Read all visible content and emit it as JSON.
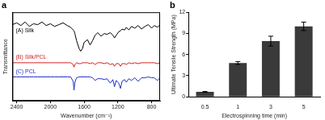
{
  "chart_data": [
    {
      "type": "line",
      "title": "a",
      "x_label": "Wavenumber (cm⁻¹)",
      "y_label": "Transmittance",
      "x": [
        2450,
        2400,
        2350,
        2300,
        2250,
        2200,
        2150,
        2100,
        2050,
        2000,
        1950,
        1900,
        1850,
        1800,
        1760,
        1730,
        1720,
        1710,
        1690,
        1660,
        1640,
        1620,
        1600,
        1560,
        1530,
        1500,
        1470,
        1440,
        1400,
        1360,
        1330,
        1290,
        1260,
        1240,
        1220,
        1190,
        1170,
        1150,
        1120,
        1100,
        1070,
        1040,
        1000,
        960,
        920,
        880,
        840,
        800,
        770,
        730,
        700
      ],
      "series": [
        {
          "name": "(A) Silk",
          "color": "#000000",
          "values": [
            8.6,
            8.8,
            8.5,
            8.9,
            8.4,
            8.7,
            8.6,
            8.9,
            8.5,
            8.7,
            8.4,
            8.6,
            8.8,
            8.5,
            8.3,
            8.0,
            7.9,
            7.6,
            6.8,
            5.9,
            5.6,
            5.9,
            6.6,
            6.9,
            6.3,
            6.8,
            7.4,
            7.7,
            7.3,
            7.6,
            7.5,
            7.7,
            7.4,
            7.1,
            7.4,
            7.8,
            7.9,
            8.1,
            8.0,
            8.3,
            8.0,
            8.4,
            8.2,
            8.5,
            8.1,
            8.4,
            8.6,
            8.2,
            8.5,
            8.3,
            8.6
          ]
        },
        {
          "name": "(B) Silk/PCL",
          "color": "#d42020",
          "values": [
            4.3,
            4.3,
            4.3,
            4.3,
            4.3,
            4.3,
            4.3,
            4.3,
            4.3,
            4.3,
            4.3,
            4.3,
            4.3,
            4.3,
            4.3,
            4.1,
            3.8,
            4.1,
            4.3,
            4.2,
            4.2,
            4.3,
            4.3,
            4.3,
            4.2,
            4.3,
            4.1,
            4.3,
            4.3,
            4.2,
            4.3,
            4.1,
            4.2,
            3.9,
            4.2,
            4.2,
            3.9,
            4.2,
            4.2,
            4.1,
            4.3,
            4.2,
            4.3,
            4.2,
            4.3,
            4.3,
            4.3,
            4.3,
            4.3,
            4.2,
            4.3
          ]
        },
        {
          "name": "(C) PCL",
          "color": "#2030c8",
          "values": [
            2.7,
            2.7,
            2.7,
            2.7,
            2.7,
            2.7,
            2.7,
            2.7,
            2.7,
            2.7,
            2.7,
            2.7,
            2.7,
            2.7,
            2.7,
            2.2,
            1.2,
            2.1,
            2.6,
            2.7,
            2.7,
            2.7,
            2.7,
            2.7,
            2.7,
            2.6,
            2.3,
            2.5,
            2.5,
            2.4,
            2.5,
            2.0,
            2.4,
            1.6,
            2.3,
            2.0,
            1.4,
            2.2,
            2.4,
            2.1,
            2.5,
            2.3,
            2.6,
            2.2,
            2.6,
            2.6,
            2.7,
            2.6,
            2.6,
            2.3,
            2.6
          ]
        }
      ],
      "xlim": [
        2450,
        700
      ],
      "xticks": [
        2400,
        2000,
        1600,
        1200,
        800
      ],
      "ylim": [
        0,
        10
      ],
      "tick_labels": "x",
      "grid": false
    },
    {
      "type": "bar",
      "title": "b",
      "x_label": "Electrospinning time (min)",
      "y_label": "Ultimate Tensile Strength (MPa)",
      "categories": [
        "0.5",
        "1",
        "3",
        "5"
      ],
      "values": [
        0.7,
        4.8,
        7.9,
        10.0
      ],
      "errors": [
        0.05,
        0.2,
        0.7,
        0.6
      ],
      "color": "#3a3a3a",
      "ylim": [
        0,
        12
      ],
      "yticks": [
        0,
        3,
        6,
        9,
        12
      ],
      "grid": false
    }
  ]
}
